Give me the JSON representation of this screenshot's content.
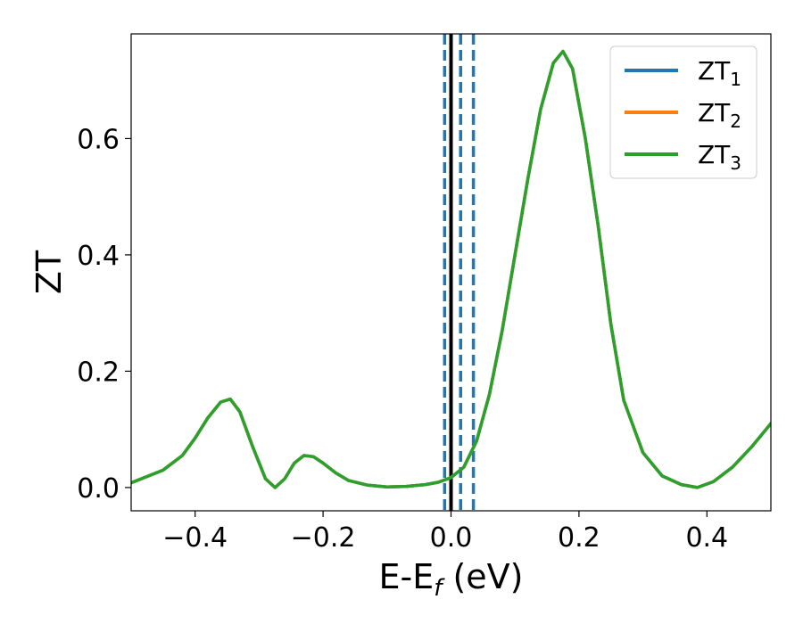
{
  "chart_data": {
    "type": "line",
    "xlabel_main": "E-E",
    "xlabel_sub": "f",
    "xlabel_unit": " (eV)",
    "ylabel": "ZT",
    "xlim": [
      -0.5,
      0.5
    ],
    "ylim": [
      -0.04,
      0.78
    ],
    "grid": false,
    "legend_position": "top-right",
    "xticks": [
      -0.4,
      -0.2,
      0.0,
      0.2,
      0.4
    ],
    "xtick_labels": [
      "−0.4",
      "−0.2",
      "0.0",
      "0.2",
      "0.4"
    ],
    "yticks": [
      0.0,
      0.2,
      0.4,
      0.6
    ],
    "ytick_labels": [
      "0.0",
      "0.2",
      "0.4",
      "0.6"
    ],
    "series": [
      {
        "name_main": "ZT",
        "name_sub": "1",
        "color": "#1f77b4"
      },
      {
        "name_main": "ZT",
        "name_sub": "2",
        "color": "#ff7f0e"
      },
      {
        "name_main": "ZT",
        "name_sub": "3",
        "color": "#2ca02c"
      }
    ],
    "x": [
      -0.5,
      -0.45,
      -0.42,
      -0.4,
      -0.38,
      -0.36,
      -0.345,
      -0.33,
      -0.31,
      -0.29,
      -0.275,
      -0.26,
      -0.245,
      -0.23,
      -0.215,
      -0.2,
      -0.18,
      -0.16,
      -0.13,
      -0.1,
      -0.07,
      -0.04,
      -0.02,
      0.0,
      0.02,
      0.04,
      0.06,
      0.08,
      0.1,
      0.12,
      0.14,
      0.16,
      0.175,
      0.19,
      0.21,
      0.23,
      0.25,
      0.27,
      0.3,
      0.33,
      0.36,
      0.385,
      0.41,
      0.44,
      0.47,
      0.5
    ],
    "y": [
      0.008,
      0.03,
      0.055,
      0.085,
      0.12,
      0.147,
      0.152,
      0.13,
      0.07,
      0.015,
      0.0,
      0.015,
      0.042,
      0.055,
      0.053,
      0.042,
      0.025,
      0.012,
      0.004,
      0.001,
      0.002,
      0.005,
      0.009,
      0.017,
      0.035,
      0.08,
      0.16,
      0.27,
      0.4,
      0.53,
      0.65,
      0.73,
      0.75,
      0.72,
      0.6,
      0.45,
      0.28,
      0.15,
      0.06,
      0.02,
      0.005,
      0.0,
      0.01,
      0.035,
      0.07,
      0.11
    ],
    "vertical_lines": [
      {
        "x": 0.0,
        "style": "solid",
        "color": "#000000"
      },
      {
        "x": -0.01,
        "style": "dashed",
        "color": "#1f77b4"
      },
      {
        "x": 0.015,
        "style": "dashed",
        "color": "#1f77b4"
      },
      {
        "x": 0.035,
        "style": "dashed",
        "color": "#1f77b4"
      }
    ]
  }
}
